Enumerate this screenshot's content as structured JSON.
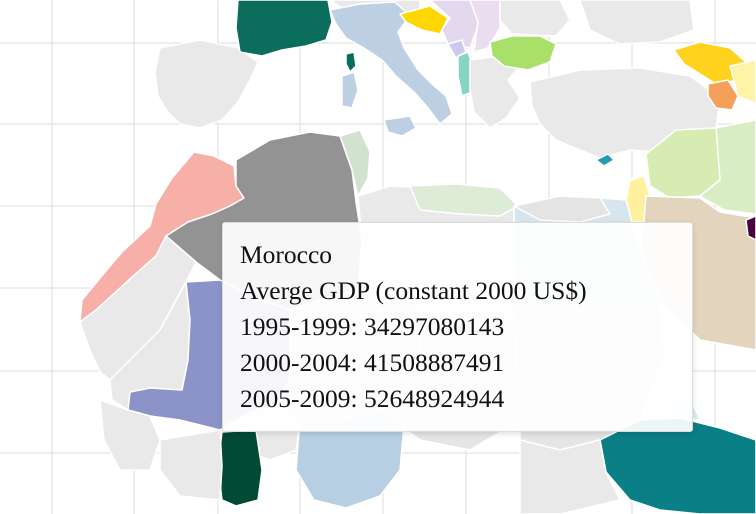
{
  "colors": {
    "background": "#ffffff",
    "graticule": "#dcdcdc",
    "no_data_land": "#e9e9e9",
    "morocco": "#f7b0a8",
    "algeria": "#939393",
    "mali": "#8c93c8",
    "france": "#0b6e5d",
    "italy": "#bccfe3",
    "ethiopia": "#0a7f86",
    "ghana": "#004a36",
    "bulgaria": "#a9e06a",
    "georgia": "#ffd21e",
    "armenia": "#f4a05a",
    "croatia": "#ffd700",
    "albania": "#87d3c4",
    "egypt": "#d7e6ee",
    "libya": "#e9e9e9",
    "tunisia": "#d1e3cf",
    "israel": "#fff1a0",
    "jordan": "#e3d5bd",
    "syria": "#d6ecb2",
    "cyprus": "#2799b6",
    "nigeria": "#b6cfe3",
    "chad": "#e5e5e5",
    "sudan": "#e5e5e5",
    "iraq": "#d8edc2",
    "purple_country": "#4a0442",
    "tooltip_bg": "#ffffff",
    "tooltip_text": "#111111"
  },
  "tooltip": {
    "country": "Morocco",
    "metric": "Averge GDP (constant 2000 US$)",
    "periods": [
      {
        "label": "1995-1999: 34297080143"
      },
      {
        "label": "2000-2004: 41508887491"
      },
      {
        "label": "2005-2009: 52648924944"
      }
    ]
  }
}
